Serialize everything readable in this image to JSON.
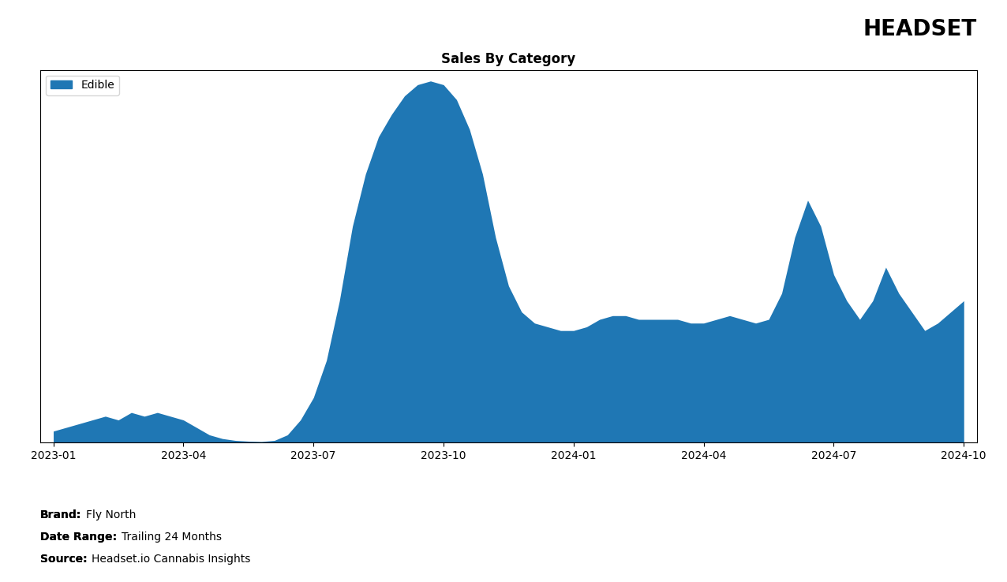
{
  "chart_data": {
    "type": "area",
    "title": "Sales By Category",
    "series": [
      {
        "name": "Edible",
        "x": [
          0,
          0.3,
          0.6,
          0.9,
          1.2,
          1.5,
          1.8,
          2.1,
          2.4,
          2.7,
          3.0,
          3.3,
          3.6,
          3.9,
          4.2,
          4.5,
          4.8,
          5.1,
          5.4,
          5.7,
          6.0,
          6.3,
          6.6,
          6.9,
          7.2,
          7.5,
          7.8,
          8.1,
          8.4,
          8.7,
          9.0,
          9.3,
          9.6,
          9.9,
          10.2,
          10.5,
          10.8,
          11.1,
          11.4,
          11.7,
          12.0,
          12.3,
          12.6,
          12.9,
          13.2,
          13.5,
          13.8,
          14.1,
          14.4,
          14.7,
          15.0,
          15.3,
          15.6,
          15.9,
          16.2,
          16.5,
          16.8,
          17.1,
          17.4,
          17.7,
          18.0,
          18.3,
          18.6,
          18.9,
          19.2,
          19.5,
          19.8,
          20.1,
          20.4,
          20.7,
          21.0
        ],
        "values": [
          3,
          4,
          5,
          6,
          7,
          6,
          8,
          7,
          8,
          7,
          6,
          4,
          2,
          1,
          0.5,
          0.3,
          0.2,
          0.5,
          2,
          6,
          12,
          22,
          38,
          58,
          72,
          82,
          88,
          93,
          96,
          97,
          96,
          92,
          84,
          72,
          55,
          42,
          35,
          32,
          31,
          30,
          30,
          31,
          33,
          34,
          34,
          33,
          33,
          33,
          33,
          32,
          32,
          33,
          34,
          33,
          32,
          33,
          40,
          55,
          65,
          58,
          45,
          38,
          33,
          38,
          47,
          40,
          35,
          30,
          32,
          35,
          38
        ]
      }
    ],
    "xlim": [
      -0.3,
      21.3
    ],
    "ylim": [
      0,
      100
    ],
    "xticks": [
      {
        "value": 0,
        "label": "2023-01"
      },
      {
        "value": 3,
        "label": "2023-04"
      },
      {
        "value": 6,
        "label": "2023-07"
      },
      {
        "value": 9,
        "label": "2023-10"
      },
      {
        "value": 12,
        "label": "2024-01"
      },
      {
        "value": 15,
        "label": "2024-04"
      },
      {
        "value": 18,
        "label": "2024-07"
      },
      {
        "value": 21,
        "label": "2024-10"
      }
    ],
    "tick_labels": "x",
    "legend": "upper left",
    "grid": false,
    "annotations": [
      [
        "HEADSET"
      ],
      [
        "Brand:",
        "Fly North"
      ],
      [
        "Date Range:",
        "Trailing 24 Months"
      ],
      [
        "Source:",
        "Headset.io Cannabis Insights"
      ]
    ]
  }
}
